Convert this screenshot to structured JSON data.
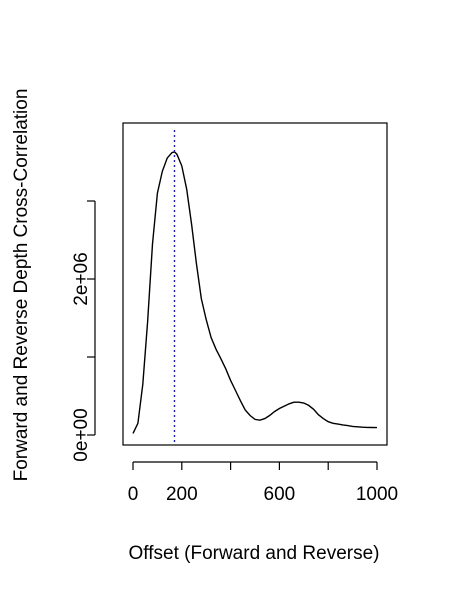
{
  "chart_data": {
    "type": "line",
    "title": "",
    "xlabel": "Offset (Forward and Reverse)",
    "ylabel": "Forward and Reverse Depth Cross-Correlation",
    "xlim": [
      0,
      1000
    ],
    "ylim": [
      0,
      3700000
    ],
    "x_ticks": [
      0,
      200,
      400,
      600,
      800,
      1000
    ],
    "x_tick_labels": [
      "0",
      "200",
      "",
      "600",
      "",
      "1000"
    ],
    "y_ticks": [
      0,
      1000000,
      2000000,
      3000000
    ],
    "y_tick_labels": [
      "0e+00",
      "",
      "2e+06",
      ""
    ],
    "grid": false,
    "legend": "none",
    "peak_offset": 170,
    "series": [
      {
        "x": [
          0,
          20,
          40,
          60,
          80,
          100,
          120,
          140,
          160,
          170,
          180,
          200,
          220,
          240,
          260,
          280,
          300,
          320,
          340,
          360,
          380,
          400,
          420,
          440,
          460,
          480,
          500,
          520,
          540,
          560,
          580,
          600,
          620,
          640,
          660,
          680,
          700,
          720,
          740,
          760,
          780,
          800,
          820,
          840,
          860,
          880,
          900,
          920,
          940,
          960,
          980,
          1000
        ],
        "y": [
          20000,
          150000,
          650000,
          1450000,
          2450000,
          3100000,
          3380000,
          3550000,
          3620000,
          3630000,
          3600000,
          3450000,
          3150000,
          2700000,
          2200000,
          1750000,
          1480000,
          1250000,
          1100000,
          980000,
          850000,
          700000,
          570000,
          440000,
          320000,
          250000,
          200000,
          190000,
          210000,
          250000,
          300000,
          340000,
          370000,
          400000,
          420000,
          420000,
          410000,
          380000,
          330000,
          260000,
          210000,
          170000,
          150000,
          140000,
          130000,
          120000,
          110000,
          105000,
          100000,
          98000,
          96000,
          95000
        ]
      }
    ]
  }
}
